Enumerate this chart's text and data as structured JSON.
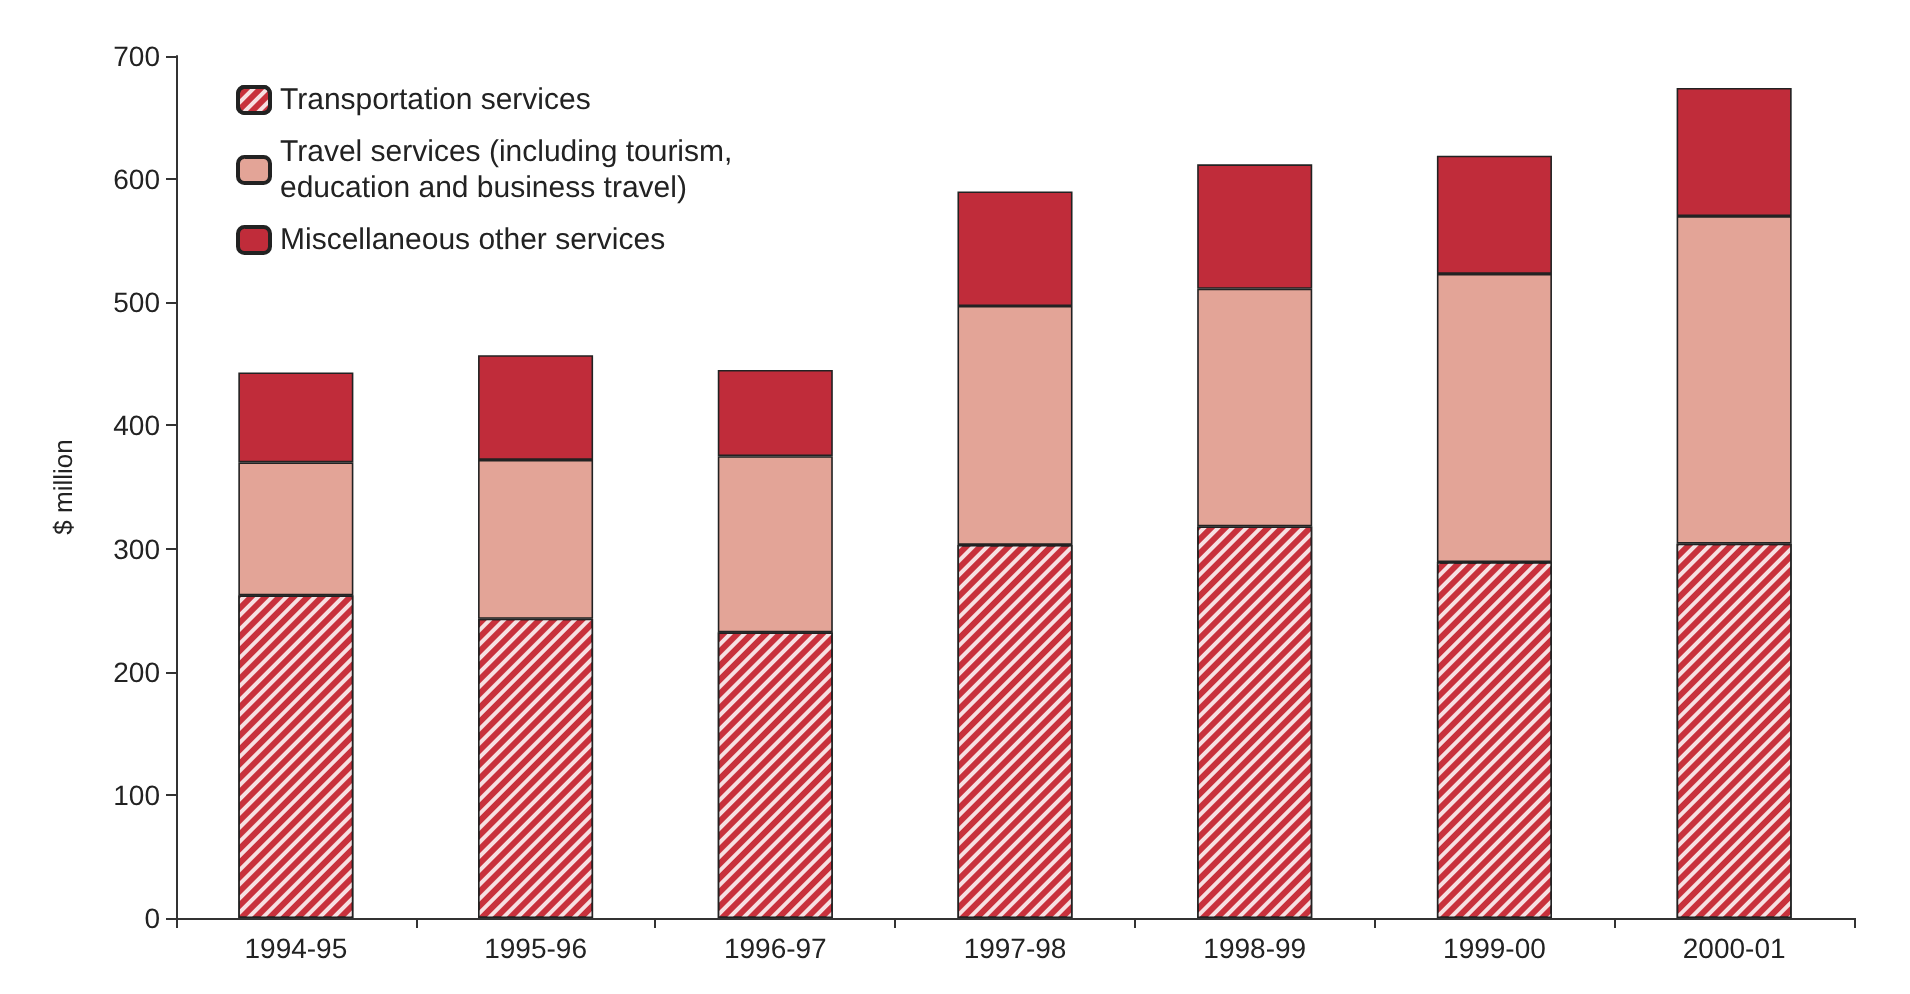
{
  "chart_data": {
    "type": "bar",
    "stacked": true,
    "ylabel": "$ million",
    "categories": [
      "1994-95",
      "1995-96",
      "1996-97",
      "1997-98",
      "1998-99",
      "1999-00",
      "2000-01"
    ],
    "series": [
      {
        "name": "Transportation services",
        "color": "#c8313c",
        "values": [
          262,
          243,
          232,
          303,
          318,
          289,
          304
        ]
      },
      {
        "name": "Travel services (including tourism, education and business travel)",
        "color": "#e3a497",
        "values": [
          108,
          129,
          143,
          194,
          193,
          234,
          266
        ]
      },
      {
        "name": "Miscellaneous other services",
        "color": "#c02c3a",
        "values": [
          73,
          85,
          70,
          93,
          101,
          96,
          104
        ]
      }
    ],
    "ylim": [
      0,
      700
    ],
    "yticks": [
      0,
      100,
      200,
      300,
      400,
      500,
      600,
      700
    ],
    "grid": false,
    "legend": "top left"
  }
}
